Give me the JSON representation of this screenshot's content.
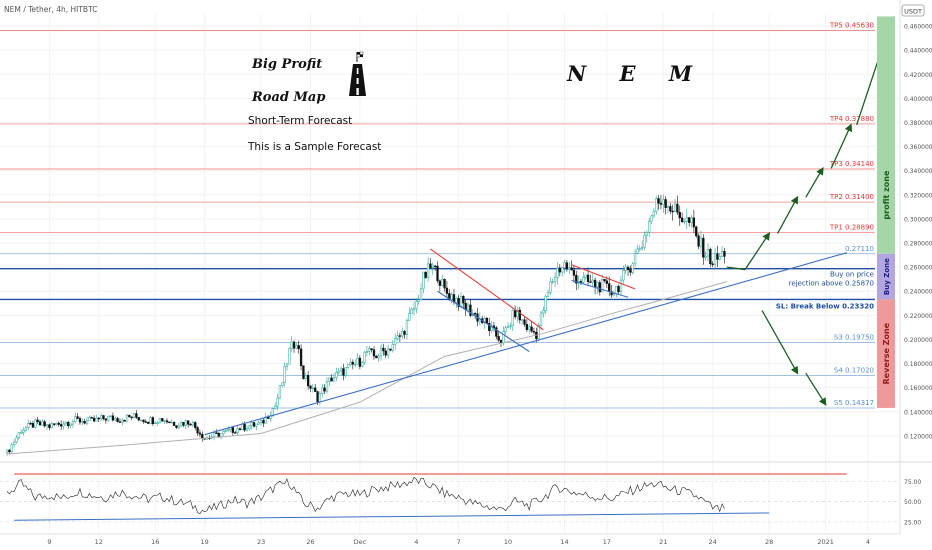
{
  "header": {
    "symbol": "NEM / Tether, 4h, HITBTC",
    "currency": "USDT"
  },
  "title": {
    "line1": "Big Profit",
    "line2": "Road Map",
    "coin": "N E M",
    "subtitle1": "Short-Term Forecast",
    "subtitle2": "This is a Sample Forecast",
    "flag_icon": "checkered-flag-icon",
    "road_icon": "road-icon"
  },
  "zones": {
    "profit": "profit zone",
    "buy": "Buy Zone",
    "reverse": "Reverse Zone",
    "profit_color": "#a5d6a7",
    "buy_color": "#b3a6e0",
    "reverse_color": "#ef9a9a"
  },
  "levels": [
    {
      "label": "TP5 0.45630",
      "value": 0.4563,
      "color": "#e53935"
    },
    {
      "label": "TP4 0.37880",
      "value": 0.3788,
      "color": "#e53935"
    },
    {
      "label": "TP3 0.34140",
      "value": 0.3414,
      "color": "#e53935"
    },
    {
      "label": "TP2 0.31400",
      "value": 0.314,
      "color": "#e53935"
    },
    {
      "label": "TP1 0.28890",
      "value": 0.2889,
      "color": "#e53935"
    },
    {
      "label": "0.27110",
      "value": 0.2711,
      "color": "#5b8fd1"
    },
    {
      "label": "Buy on price rejection above 0.25870",
      "label_line1": "Buy on price",
      "label_line2": "rejection above 0.25870",
      "value": 0.2587,
      "color": "#1e4fa0"
    },
    {
      "label": "SL: Break Below 0.23320",
      "value": 0.2332,
      "color": "#1e4fa0"
    },
    {
      "label": "S3 0.19750",
      "value": 0.1975,
      "color": "#5b8fd1"
    },
    {
      "label": "S4 0.17020",
      "value": 0.1702,
      "color": "#5b8fd1"
    },
    {
      "label": "S5 0.14317",
      "value": 0.14317,
      "color": "#5b8fd1"
    }
  ],
  "chart_data": {
    "type": "candlestick",
    "ylim": [
      0.1,
      0.47
    ],
    "price_ticks": [
      {
        "value": 0.12,
        "label": "0.1200000"
      },
      {
        "value": 0.14,
        "label": "0.1400000"
      },
      {
        "value": 0.16,
        "label": "0.1600000"
      },
      {
        "value": 0.18,
        "label": "0.1800000"
      },
      {
        "value": 0.2,
        "label": "0.2000000"
      },
      {
        "value": 0.22,
        "label": "0.2200000"
      },
      {
        "value": 0.24,
        "label": "0.2400000"
      },
      {
        "value": 0.26,
        "label": "0.2600000"
      },
      {
        "value": 0.28,
        "label": "0.2800000"
      },
      {
        "value": 0.3,
        "label": "0.3000000"
      },
      {
        "value": 0.32,
        "label": "0.3200000"
      },
      {
        "value": 0.34,
        "label": "0.3400000"
      },
      {
        "value": 0.36,
        "label": "0.3600000"
      },
      {
        "value": 0.38,
        "label": "0.3800000"
      },
      {
        "value": 0.4,
        "label": "0.4000000"
      },
      {
        "value": 0.42,
        "label": "0.4200000"
      },
      {
        "value": 0.44,
        "label": "0.4400000"
      },
      {
        "value": 0.46,
        "label": "0.4600000"
      }
    ],
    "x_ticks": [
      "9",
      "12",
      "16",
      "19",
      "23",
      "26",
      "Dec",
      "4",
      "7",
      "10",
      "14",
      "17",
      "21",
      "24",
      "28",
      "2021",
      "4"
    ],
    "x_tick_pos": [
      0,
      3.5,
      7.5,
      11,
      15,
      18.5,
      22,
      26,
      29,
      32.5,
      36.5,
      39.5,
      43.5,
      47,
      51,
      55,
      58
    ],
    "x_range": [
      -3.5,
      58.5
    ],
    "close_path": [
      [
        -3,
        0.106
      ],
      [
        -2,
        0.125
      ],
      [
        -1,
        0.13
      ],
      [
        0,
        0.128
      ],
      [
        1,
        0.131
      ],
      [
        2,
        0.133
      ],
      [
        3,
        0.132
      ],
      [
        4,
        0.135
      ],
      [
        5,
        0.134
      ],
      [
        6,
        0.136
      ],
      [
        7,
        0.133
      ],
      [
        8,
        0.134
      ],
      [
        9,
        0.13
      ],
      [
        10,
        0.132
      ],
      [
        11,
        0.118
      ],
      [
        12,
        0.121
      ],
      [
        13,
        0.125
      ],
      [
        14,
        0.128
      ],
      [
        15,
        0.13
      ],
      [
        16,
        0.145
      ],
      [
        16.5,
        0.165
      ],
      [
        17,
        0.19
      ],
      [
        17.5,
        0.2
      ],
      [
        18,
        0.17
      ],
      [
        18.5,
        0.16
      ],
      [
        19,
        0.152
      ],
      [
        20,
        0.168
      ],
      [
        21,
        0.175
      ],
      [
        22,
        0.182
      ],
      [
        22.5,
        0.19
      ],
      [
        23,
        0.186
      ],
      [
        24,
        0.192
      ],
      [
        25,
        0.205
      ],
      [
        26,
        0.23
      ],
      [
        26.5,
        0.25
      ],
      [
        27,
        0.26
      ],
      [
        27.5,
        0.255
      ],
      [
        28,
        0.24
      ],
      [
        29,
        0.232
      ],
      [
        30,
        0.222
      ],
      [
        31,
        0.212
      ],
      [
        31.5,
        0.205
      ],
      [
        32,
        0.2
      ],
      [
        32.5,
        0.21
      ],
      [
        33,
        0.223
      ],
      [
        33.5,
        0.215
      ],
      [
        34,
        0.208
      ],
      [
        34.5,
        0.205
      ],
      [
        35,
        0.225
      ],
      [
        35.5,
        0.245
      ],
      [
        36,
        0.258
      ],
      [
        36.5,
        0.262
      ],
      [
        37,
        0.255
      ],
      [
        37.5,
        0.25
      ],
      [
        38,
        0.248
      ],
      [
        38.5,
        0.246
      ],
      [
        39,
        0.245
      ],
      [
        39.5,
        0.242
      ],
      [
        40,
        0.24
      ],
      [
        40.5,
        0.248
      ],
      [
        41,
        0.258
      ],
      [
        41.5,
        0.27
      ],
      [
        42,
        0.28
      ],
      [
        42.5,
        0.298
      ],
      [
        43,
        0.312
      ],
      [
        43.5,
        0.318
      ],
      [
        44,
        0.31
      ],
      [
        44.5,
        0.305
      ],
      [
        45,
        0.3
      ],
      [
        45.5,
        0.295
      ],
      [
        46,
        0.28
      ],
      [
        46.5,
        0.272
      ],
      [
        47,
        0.265
      ],
      [
        47.5,
        0.268
      ],
      [
        48,
        0.275
      ]
    ],
    "moving_average": [
      [
        -3,
        0.105
      ],
      [
        5,
        0.112
      ],
      [
        15,
        0.122
      ],
      [
        22,
        0.148
      ],
      [
        28,
        0.186
      ],
      [
        35,
        0.205
      ],
      [
        40,
        0.222
      ],
      [
        45,
        0.238
      ],
      [
        48,
        0.248
      ]
    ],
    "trendlines": [
      {
        "from": [
          11,
          0.121
        ],
        "to": [
          56.5,
          0.272
        ],
        "color": "#3a6fc4"
      },
      {
        "from": [
          27,
          0.275
        ],
        "to": [
          35,
          0.208
        ],
        "color": "#e53935"
      },
      {
        "from": [
          27.5,
          0.24
        ],
        "to": [
          34,
          0.19
        ],
        "color": "#3a6fc4"
      },
      {
        "from": [
          37,
          0.262
        ],
        "to": [
          41.5,
          0.242
        ],
        "color": "#e53935"
      },
      {
        "from": [
          37,
          0.249
        ],
        "to": [
          41,
          0.235
        ],
        "color": "#3a6fc4"
      }
    ],
    "forecast_up": [
      [
        49.3,
        0.258
      ],
      [
        51.0,
        0.288
      ],
      [
        51.6,
        0.288
      ],
      [
        53.0,
        0.318
      ],
      [
        53.6,
        0.318
      ],
      [
        54.8,
        0.342
      ],
      [
        55.4,
        0.342
      ],
      [
        56.8,
        0.378
      ],
      [
        57.2,
        0.378
      ],
      [
        59.3,
        0.452
      ]
    ],
    "forecast_down": [
      [
        50.5,
        0.224
      ],
      [
        53.0,
        0.172
      ],
      [
        53.6,
        0.172
      ],
      [
        55.0,
        0.146
      ]
    ],
    "rsi": {
      "ticks": [
        {
          "value": 25,
          "label": "25.00"
        },
        {
          "value": 50,
          "label": "50.00"
        },
        {
          "value": 75,
          "label": "75.00"
        }
      ],
      "ylim": [
        15,
        95
      ],
      "upper_band": [
        [
          -2.5,
          84
        ],
        [
          56.5,
          84
        ]
      ],
      "lower_trend": [
        [
          -2.5,
          27
        ],
        [
          51,
          36
        ]
      ],
      "path": [
        [
          -3,
          60
        ],
        [
          -2,
          72
        ],
        [
          -1,
          55
        ],
        [
          0,
          58
        ],
        [
          1,
          54
        ],
        [
          2,
          63
        ],
        [
          3,
          58
        ],
        [
          4,
          55
        ],
        [
          5,
          62
        ],
        [
          6,
          57
        ],
        [
          7,
          53
        ],
        [
          8,
          56
        ],
        [
          9,
          50
        ],
        [
          10,
          46
        ],
        [
          11,
          38
        ],
        [
          12,
          44
        ],
        [
          13,
          52
        ],
        [
          14,
          48
        ],
        [
          15,
          55
        ],
        [
          16,
          68
        ],
        [
          17,
          74
        ],
        [
          18,
          48
        ],
        [
          19,
          42
        ],
        [
          20,
          55
        ],
        [
          21,
          60
        ],
        [
          22,
          58
        ],
        [
          23,
          65
        ],
        [
          24,
          68
        ],
        [
          25,
          72
        ],
        [
          26,
          76
        ],
        [
          27,
          70
        ],
        [
          28,
          60
        ],
        [
          29,
          55
        ],
        [
          30,
          48
        ],
        [
          31,
          44
        ],
        [
          32,
          40
        ],
        [
          33,
          50
        ],
        [
          34,
          45
        ],
        [
          35,
          55
        ],
        [
          36,
          68
        ],
        [
          37,
          62
        ],
        [
          38,
          58
        ],
        [
          39,
          55
        ],
        [
          40,
          54
        ],
        [
          41,
          62
        ],
        [
          42,
          68
        ],
        [
          43,
          72
        ],
        [
          44,
          65
        ],
        [
          45,
          62
        ],
        [
          46,
          55
        ],
        [
          47,
          42
        ],
        [
          47.5,
          40
        ],
        [
          48,
          45
        ]
      ]
    }
  }
}
